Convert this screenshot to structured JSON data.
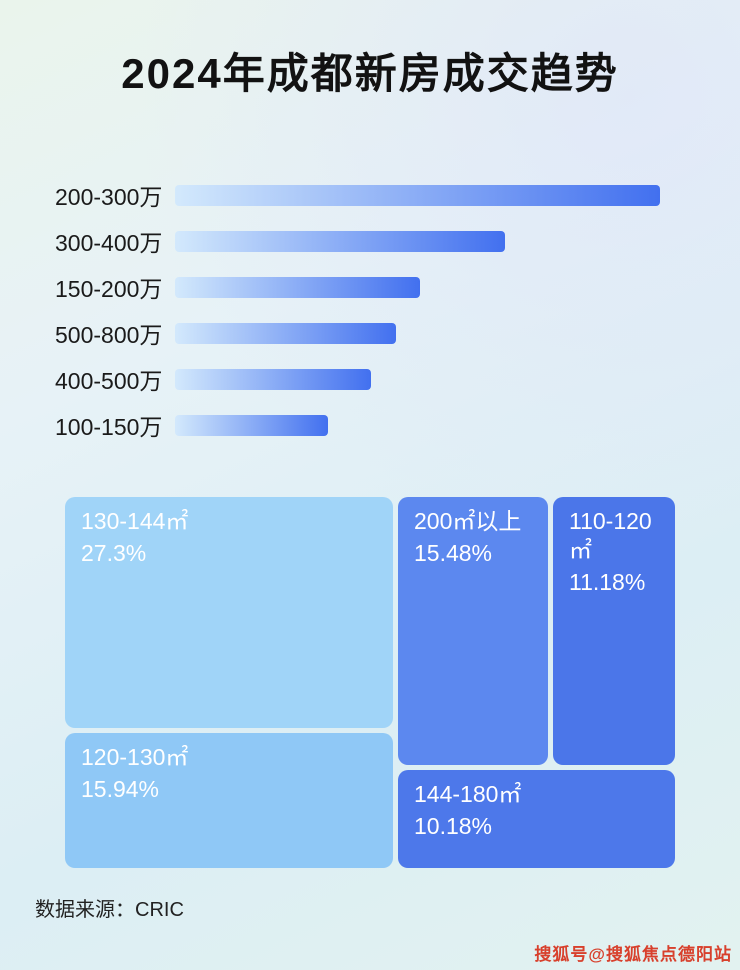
{
  "page": {
    "title": "2024年成都新房成交趋势",
    "source": "数据来源：CRIC",
    "watermark": "搜狐号@搜狐焦点德阳站"
  },
  "colors": {
    "title_text": "#121212",
    "bar_gradient_start": "#d3e9fc",
    "bar_gradient_end": "#4270ef",
    "treemap_text": "#ffffff",
    "source_text": "#222222",
    "watermark_text": "#d8402c"
  },
  "chart_data": [
    {
      "type": "bar",
      "orientation": "horizontal",
      "title": "2024年成都新房成交趋势",
      "categories": [
        "200-300万",
        "300-400万",
        "150-200万",
        "500-800万",
        "400-500万",
        "100-150万"
      ],
      "values": [
        100,
        68,
        50.5,
        45.5,
        40.5,
        31.5
      ],
      "value_note": "no numeric axis shown; values are relative bar lengths as % of longest bar",
      "xlabel": "",
      "ylabel": "",
      "grid": false,
      "legend": false
    },
    {
      "type": "treemap",
      "title": "",
      "items": [
        {
          "label": "130-144㎡",
          "value_pct": 27.3,
          "display": "27.3%",
          "color": "#a0d4f8"
        },
        {
          "label": "200㎡以上",
          "value_pct": 15.48,
          "display": "15.48%",
          "color": "#5c88ef"
        },
        {
          "label": "110-120㎡",
          "value_pct": 11.18,
          "display": "11.18%",
          "color": "#4b76e9"
        },
        {
          "label": "120-130㎡",
          "value_pct": 15.94,
          "display": "15.94%",
          "color": "#8fc8f6"
        },
        {
          "label": "144-180㎡",
          "value_pct": 10.18,
          "display": "10.18%",
          "color": "#4d78ea"
        }
      ],
      "legend": false
    }
  ]
}
